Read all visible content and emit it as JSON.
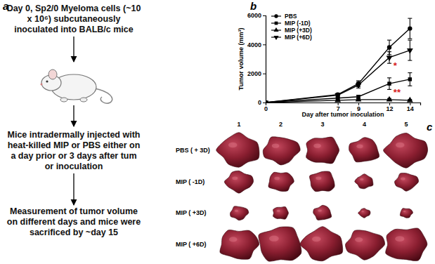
{
  "chart_data": {
    "type": "line",
    "x_label": "Day after tumor inoculation",
    "y_label": "Tumor volume (mm³)",
    "x": [
      0,
      7,
      9,
      12,
      14
    ],
    "xlim": [
      0,
      15
    ],
    "xticks": [
      0,
      7,
      9,
      12,
      14
    ],
    "ylim": [
      0,
      6000
    ],
    "yticks": [
      0,
      2000,
      4000,
      6000
    ],
    "legend": "top-left",
    "series": [
      {
        "name": "PBS",
        "color": "#000000",
        "marker": "circle",
        "values": [
          0,
          550,
          1300,
          3800,
          5100
        ],
        "errors": [
          0,
          100,
          200,
          500,
          700
        ]
      },
      {
        "name": "MIP (-1D)",
        "color": "#000000",
        "marker": "square",
        "values": [
          0,
          300,
          400,
          1300,
          1600
        ],
        "errors": [
          0,
          60,
          100,
          400,
          450
        ]
      },
      {
        "name": "MIP (+3D)",
        "color": "#000000",
        "marker": "triangle-up",
        "values": [
          0,
          150,
          200,
          200,
          150
        ],
        "errors": [
          0,
          40,
          60,
          80,
          60
        ]
      },
      {
        "name": "MIP (+6D)",
        "color": "#000000",
        "marker": "triangle-down",
        "values": [
          0,
          500,
          1200,
          3100,
          3600
        ],
        "errors": [
          0,
          100,
          200,
          400,
          700
        ]
      }
    ],
    "annotations": [
      {
        "text": "*",
        "x": 12.4,
        "y": 2300,
        "color": "#d62020"
      },
      {
        "text": "**",
        "x": 12.4,
        "y": 500,
        "color": "#d62020"
      }
    ]
  },
  "panels": {
    "a": {
      "label": "a",
      "steps": [
        "Day 0, Sp2/0 Myeloma cells (~10 x 10⁶) subcutaneously inoculated into BALB/c mice",
        "Mice intradermally injected with heat-killed MIP or PBS either on a day prior or 3 days after tum or inoculation",
        "Measurement of tumor volume on different days and mice were sacrificed by ~day 15"
      ]
    },
    "b": {
      "label": "b"
    },
    "c": {
      "label": "c",
      "columns": [
        "1",
        "2",
        "3",
        "4",
        "5"
      ],
      "rows": [
        "PBS ( + 3D)",
        "MIP ( -1D)",
        "MIP ( +3D)",
        "MIP ( +6D)"
      ]
    }
  }
}
